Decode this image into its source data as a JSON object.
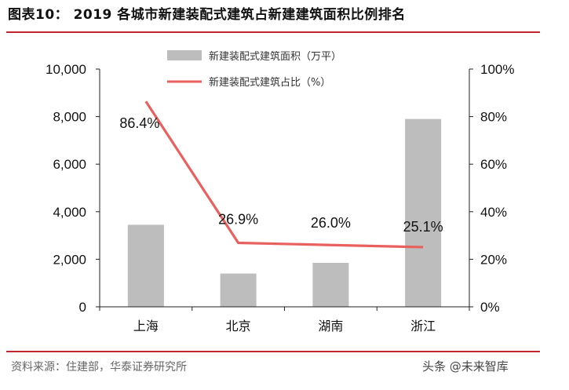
{
  "header": {
    "title": "图表10：   2019 各城市新建装配式建筑占新建建筑面积比例排名"
  },
  "footer": {
    "source": "资料来源：住建部，华泰证券研究所",
    "watermark": "头条 @未来智库"
  },
  "chart_data": {
    "type": "bar",
    "categories": [
      "上海",
      "北京",
      "湖南",
      "浙江"
    ],
    "series": [
      {
        "name": "新建装配式建筑面积（万平）",
        "type": "bar",
        "axis": "left",
        "values": [
          3450,
          1400,
          1850,
          7900
        ],
        "color": "#bdbdbd"
      },
      {
        "name": "新建装配式建筑占比（%）",
        "type": "line",
        "axis": "right",
        "values": [
          86.4,
          26.9,
          26.0,
          25.1
        ],
        "labels": [
          "86.4%",
          "26.9%",
          "26.0%",
          "25.1%"
        ],
        "color": "#e8615f"
      }
    ],
    "y_left": {
      "lim": [
        0,
        10000
      ],
      "ticks": [
        0,
        2000,
        4000,
        6000,
        8000,
        10000
      ],
      "tick_labels": [
        "0",
        "2,000",
        "4,000",
        "6,000",
        "8,000",
        "10,000"
      ]
    },
    "y_right": {
      "lim": [
        0,
        100
      ],
      "ticks": [
        0,
        20,
        40,
        60,
        80,
        100
      ],
      "tick_labels": [
        "0%",
        "20%",
        "40%",
        "60%",
        "80%",
        "100%"
      ]
    },
    "legend_position": "top-center",
    "grid": false
  }
}
